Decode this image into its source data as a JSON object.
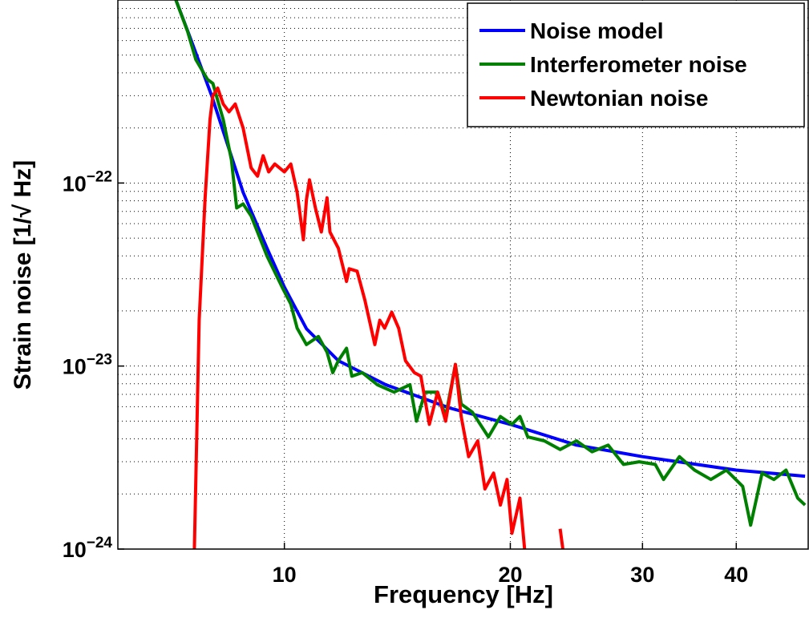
{
  "chart_data": {
    "type": "line",
    "xlabel": "Frequency [Hz]",
    "ylabel": "Strain noise [1/√ Hz]",
    "xscale": "log",
    "yscale": "log",
    "xlim": [
      6,
      50
    ],
    "ylim": [
      1e-24,
      1e-21
    ],
    "xticks": [
      10,
      20,
      30,
      40
    ],
    "yticks": [
      {
        "value": 1e-24,
        "label": "10−24"
      },
      {
        "value": 1e-23,
        "label": "10−23"
      },
      {
        "value": 1e-22,
        "label": "10−22"
      }
    ],
    "yminor_ticks": [
      2e-24,
      3e-24,
      4e-24,
      5e-24,
      6e-24,
      7e-24,
      8e-24,
      9e-24,
      2e-23,
      3e-23,
      4e-23,
      5e-23,
      6e-23,
      7e-23,
      8e-23,
      9e-23,
      2e-22,
      3e-22,
      4e-22,
      5e-22,
      6e-22,
      7e-22,
      8e-22,
      9e-22
    ],
    "grid": true,
    "legend": "upper right",
    "series": [
      {
        "name": "Noise model",
        "color": "#0000ff",
        "x": [
          7.17,
          7.43,
          8.0,
          8.81,
          9.48,
          10,
          10.7,
          11.8,
          13.65,
          16.6,
          20,
          24.5,
          30,
          40,
          49.4
        ],
        "values": [
          1e-21,
          6.8e-22,
          3e-22,
          8.9e-23,
          4.4e-23,
          2.7e-23,
          1.6e-23,
          1.07e-23,
          7.9e-24,
          5.9e-24,
          4.8e-24,
          3.7e-24,
          3.2e-24,
          2.7e-24,
          2.5e-24
        ]
      },
      {
        "name": "Interferometer noise",
        "color": "#008000",
        "x": [
          7.17,
          7.43,
          7.62,
          7.9,
          8.03,
          8.29,
          8.5,
          8.64,
          8.81,
          9.03,
          9.48,
          9.95,
          10.2,
          10.4,
          10.7,
          11.1,
          11.4,
          11.6,
          11.8,
          12.1,
          12.3,
          12.7,
          13.3,
          14.0,
          14.7,
          15.0,
          15.4,
          16.0,
          16.4,
          16.9,
          17.2,
          17.8,
          18.7,
          19.4,
          20.1,
          20.6,
          21.1,
          22.2,
          23.3,
          24.5,
          25.7,
          27.0,
          28.3,
          29.7,
          31.2,
          32.0,
          33.6,
          35.2,
          37.0,
          38.8,
          40.8,
          41.8,
          43.3,
          44.9,
          46.6,
          48.3,
          49.4
        ],
        "values": [
          1e-21,
          6.75e-22,
          4.73e-22,
          3.68e-22,
          3.5e-22,
          2.22e-22,
          1.34e-22,
          7.31e-23,
          7.69e-23,
          6.61e-23,
          3.99e-23,
          2.66e-23,
          2.18e-23,
          1.61e-23,
          1.31e-23,
          1.45e-23,
          1.19e-23,
          9.2e-24,
          1.07e-23,
          1.25e-23,
          8.8e-24,
          9.2e-24,
          7.9e-24,
          7.2e-24,
          7.9e-24,
          5e-24,
          7.2e-24,
          7.2e-24,
          5.3e-24,
          1.02e-23,
          6.2e-24,
          5.6e-24,
          4.1e-24,
          5.3e-24,
          4.8e-24,
          5.3e-24,
          4.1e-24,
          3.9e-24,
          3.5e-24,
          3.9e-24,
          3.4e-24,
          3.7e-24,
          2.9e-24,
          3e-24,
          2.9e-24,
          2.4e-24,
          3.2e-24,
          2.7e-24,
          2.4e-24,
          2.7e-24,
          2.2e-24,
          1.35e-24,
          2.6e-24,
          2.4e-24,
          2.7e-24,
          1.9e-24,
          1.74e-24
        ]
      },
      {
        "name": "Newtonian noise",
        "color": "#ff0000",
        "x": [
          7.56,
          7.7,
          7.84,
          7.96,
          8.03,
          8.15,
          8.29,
          8.44,
          8.6,
          8.81,
          9.03,
          9.21,
          9.37,
          9.53,
          9.71,
          10,
          10.2,
          10.4,
          10.6,
          10.7,
          10.8,
          11.0,
          11.2,
          11.4,
          11.5,
          11.8,
          12.1,
          12.2,
          12.5,
          12.8,
          13.2,
          13.4,
          13.6,
          13.9,
          14.2,
          14.5,
          14.9,
          15.2,
          15.6,
          16.0,
          16.4,
          16.9,
          17.2,
          17.6,
          18.1,
          18.5,
          19.0,
          19.4,
          19.8,
          20.1,
          20.6,
          21.0,
          22,
          23.3,
          23.5,
          23.7
        ],
        "values": [
          5e-25,
          1.78e-23,
          8.1e-23,
          2.22e-22,
          3e-22,
          3.3e-22,
          2.7e-22,
          2.45e-22,
          2.7e-22,
          2e-22,
          1.21e-22,
          1.09e-22,
          1.41e-22,
          1.15e-22,
          1.27e-22,
          1.15e-22,
          1.27e-22,
          8.9e-23,
          4.9e-23,
          8.1e-23,
          1.04e-22,
          7.3e-23,
          5.4e-23,
          8.3e-23,
          5.4e-23,
          4.4e-23,
          2.9e-23,
          3.4e-23,
          3.3e-23,
          2.3e-23,
          1.31e-23,
          1.78e-23,
          1.61e-23,
          1.97e-23,
          1.61e-23,
          1.07e-23,
          9.2e-24,
          8.8e-24,
          4.8e-24,
          7.2e-24,
          5e-24,
          1.02e-23,
          5.3e-24,
          3.2e-24,
          3.9e-24,
          2.13e-24,
          2.6e-24,
          1.74e-24,
          2.4e-24,
          1.22e-24,
          1.9e-24,
          8e-25,
          null,
          1.29e-24,
          1e-24,
          8e-25
        ]
      }
    ]
  }
}
